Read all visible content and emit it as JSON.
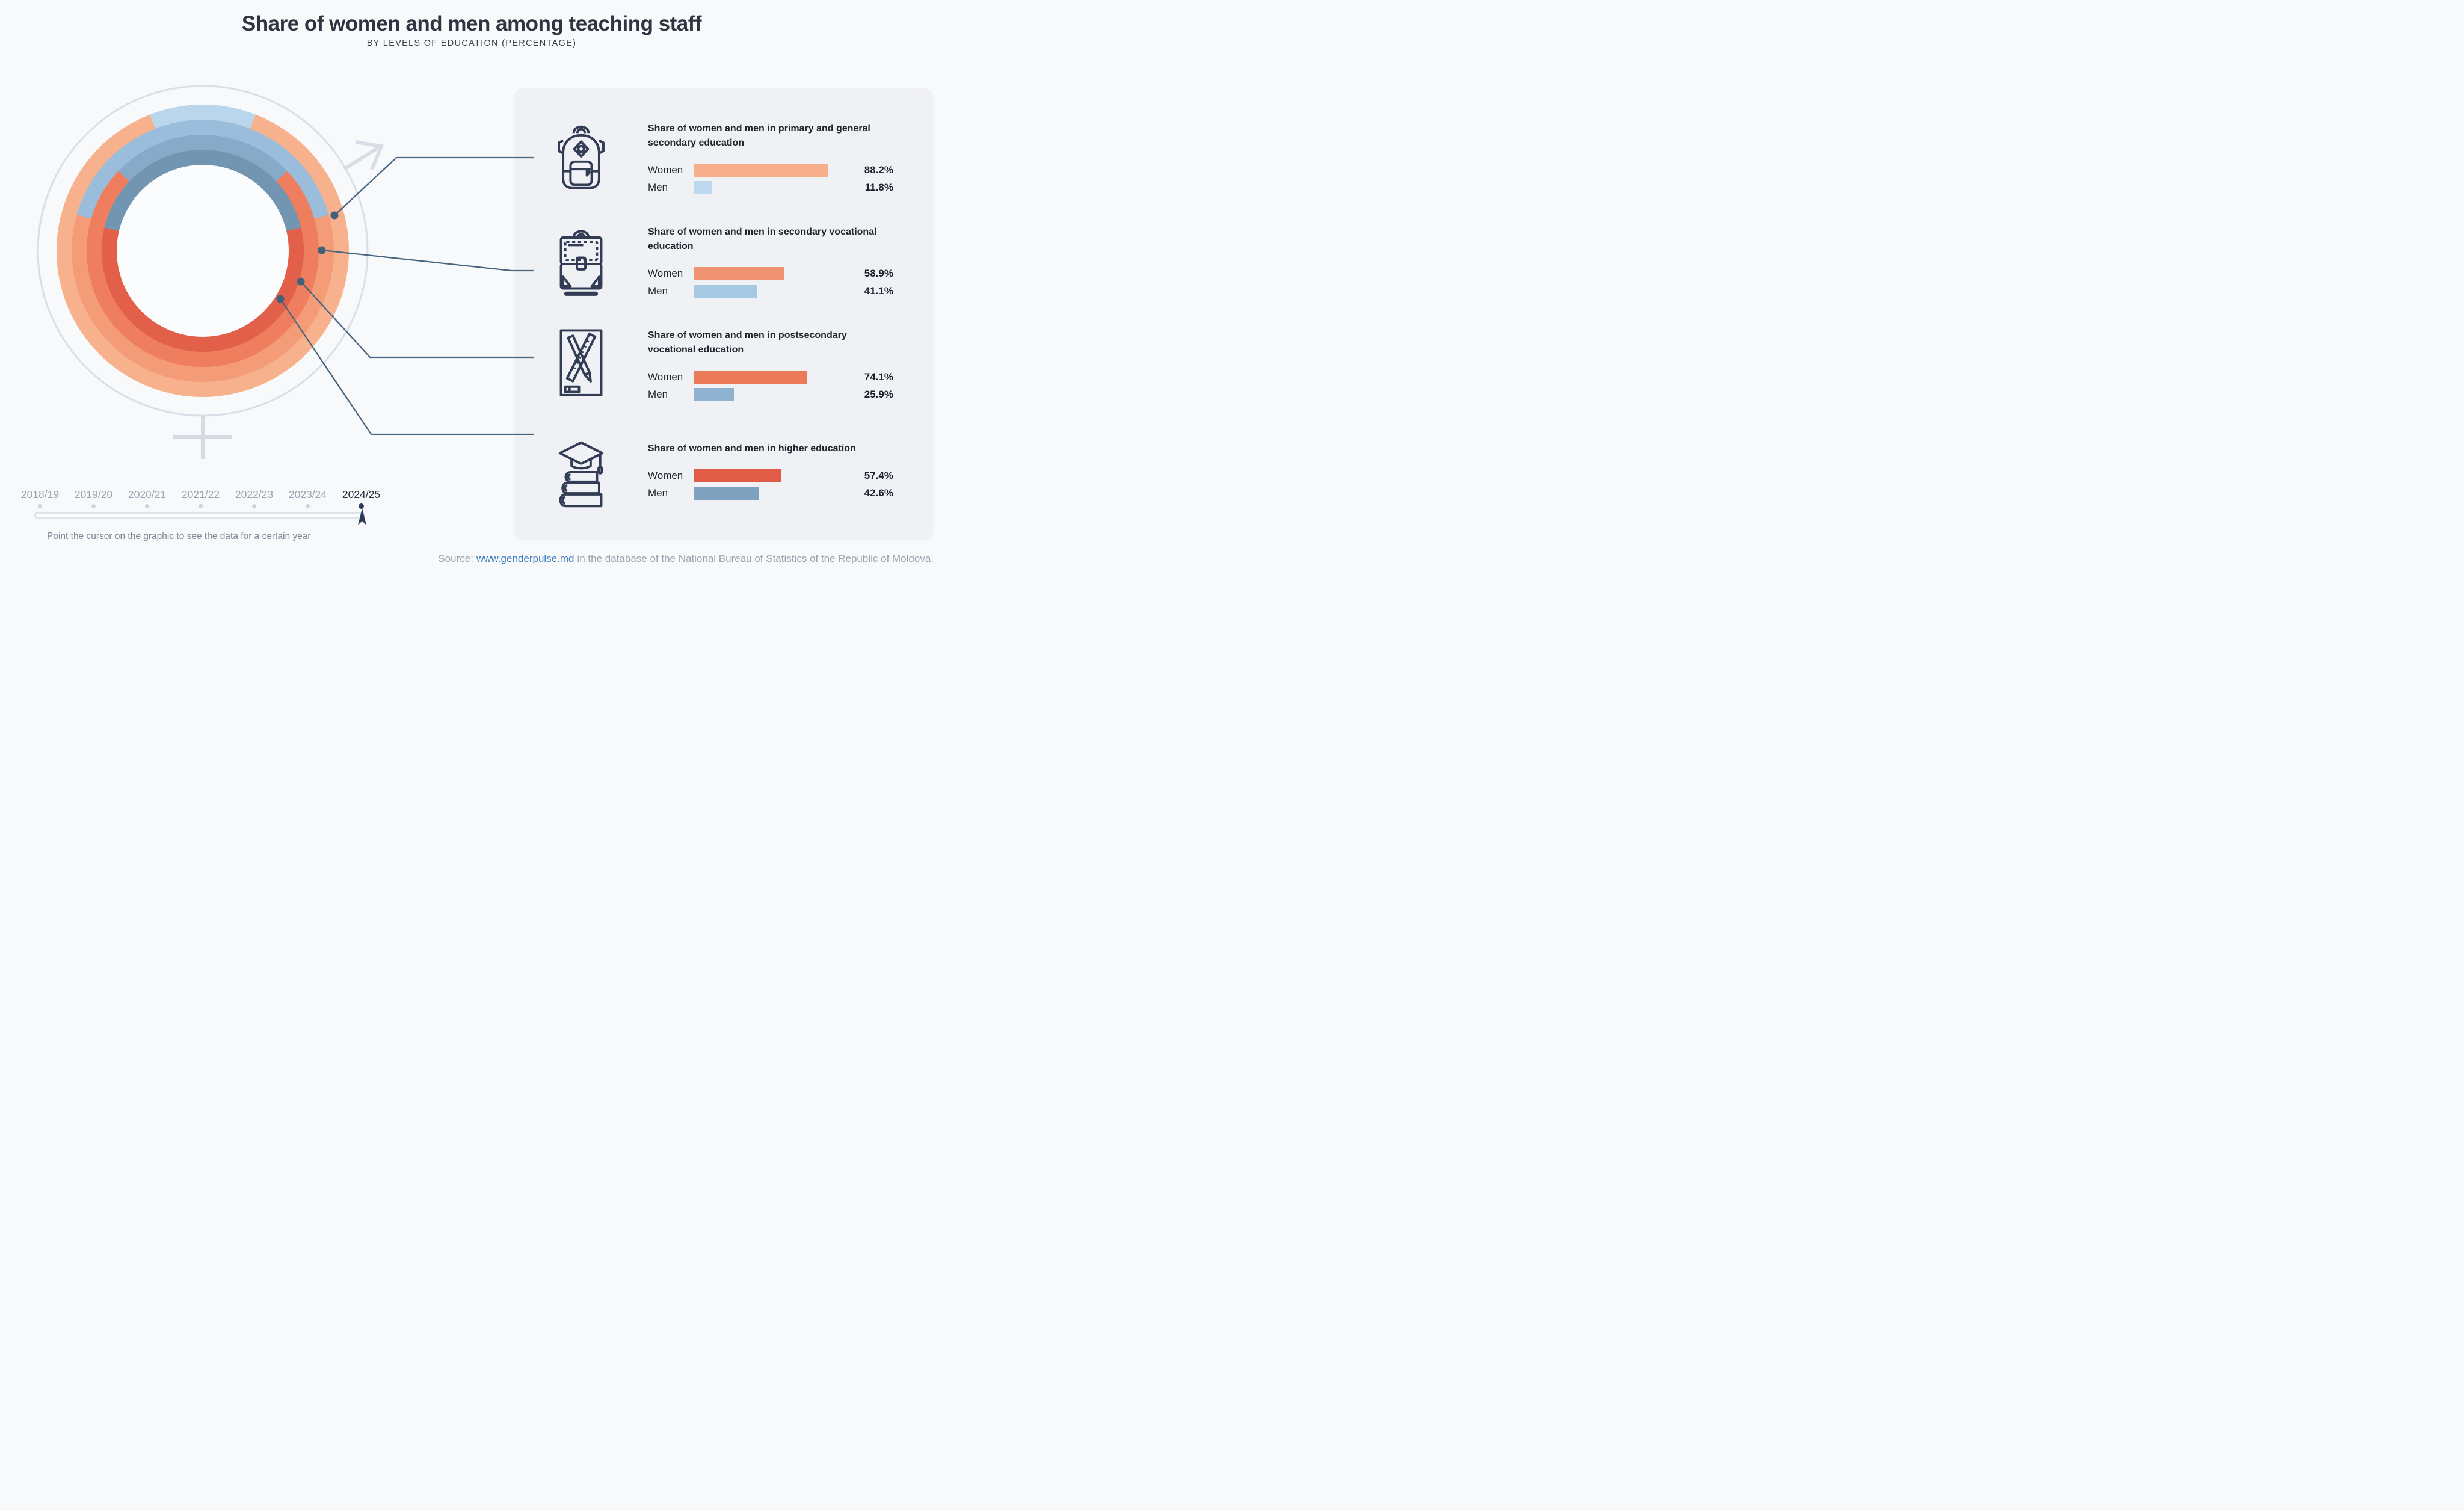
{
  "header": {
    "title": "Share of women and men among teaching staff",
    "subtitle": "BY LEVELS OF EDUCATION (PERCENTAGE)"
  },
  "donut": {
    "hole_color": "#FBFCFD",
    "outline_color": "#DADFE7",
    "rings": [
      {
        "key": "primary-general-secondary",
        "label": "Primary and general secondary education",
        "women_pct": 88.2,
        "men_pct": 11.8,
        "women_color": "#F7B28D",
        "men_color": "#BAD6ED"
      },
      {
        "key": "secondary-vocational",
        "label": "Secondary vocational education",
        "women_pct": 58.9,
        "men_pct": 41.1,
        "women_color": "#F49B78",
        "men_color": "#9ABDDB"
      },
      {
        "key": "postsecondary-vocational",
        "label": "Postsecondary vocational education",
        "women_pct": 74.1,
        "men_pct": 25.9,
        "women_color": "#EE7E5E",
        "men_color": "#87AAC9"
      },
      {
        "key": "higher",
        "label": "Higher education",
        "women_pct": 57.4,
        "men_pct": 42.6,
        "women_color": "#E25F49",
        "men_color": "#7295B2"
      }
    ]
  },
  "timeline": {
    "years": [
      {
        "label": "2018/19",
        "active": false
      },
      {
        "label": "2019/20",
        "active": false
      },
      {
        "label": "2020/21",
        "active": false
      },
      {
        "label": "2021/22",
        "active": false
      },
      {
        "label": "2022/23",
        "active": false
      },
      {
        "label": "2023/24",
        "active": false
      },
      {
        "label": "2024/25",
        "active": true
      }
    ],
    "hint": "Point the cursor on the graphic to see the data for a certain year"
  },
  "panel": {
    "blocks": [
      {
        "icon": "backpack",
        "title": "Share of women and men in primary and general secondary education",
        "rows": [
          {
            "label": "Women",
            "pct": 88.2,
            "display": "88.2%",
            "color": "#F6AF8A"
          },
          {
            "label": "Men",
            "pct": 11.8,
            "display": "11.8%",
            "color": "#BDD9F0"
          }
        ]
      },
      {
        "icon": "briefcase",
        "title": "Share of women and men in secondary vocational education",
        "rows": [
          {
            "label": "Women",
            "pct": 58.9,
            "display": "58.9%",
            "color": "#F19372"
          },
          {
            "label": "Men",
            "pct": 41.1,
            "display": "41.1%",
            "color": "#A5C8E3"
          }
        ]
      },
      {
        "icon": "pencil-ruler",
        "title": "Share of women and men in postsecondary vocational education",
        "rows": [
          {
            "label": "Women",
            "pct": 74.1,
            "display": "74.1%",
            "color": "#EA7A58"
          },
          {
            "label": "Men",
            "pct": 25.9,
            "display": "25.9%",
            "color": "#8FB2D1"
          }
        ]
      },
      {
        "icon": "graduation-books",
        "title": "Share of women and men in higher education",
        "rows": [
          {
            "label": "Women",
            "pct": 57.4,
            "display": "57.4%",
            "color": "#E05C46"
          },
          {
            "label": "Men",
            "pct": 42.6,
            "display": "42.6%",
            "color": "#7FA2BF"
          }
        ]
      }
    ]
  },
  "source": {
    "prefix": "Source:",
    "link": "www.genderpulse.md",
    "suffix": "in the database of the National Bureau of Statistics of the Republic of Moldova."
  },
  "colors": {
    "icon_navy": "#333C55",
    "connector": "#486580",
    "link_blue": "#4180BE",
    "active_year": "#2C3A55",
    "inactive_year": "#9AA3B1",
    "panel_bg": "#EFF1F4",
    "page_bg": "#F8F9FA"
  },
  "chart_data": {
    "type": "bar",
    "title": "Share of women and men among teaching staff",
    "subtitle": "By levels of education (percentage)",
    "year_shown": "2024/25",
    "years_available": [
      "2018/19",
      "2019/20",
      "2020/21",
      "2021/22",
      "2022/23",
      "2023/24",
      "2024/25"
    ],
    "categories": [
      "Primary and general secondary education",
      "Secondary vocational education",
      "Postsecondary vocational education",
      "Higher education"
    ],
    "series": [
      {
        "name": "Women",
        "values": [
          88.2,
          58.9,
          74.1,
          57.4
        ]
      },
      {
        "name": "Men",
        "values": [
          11.8,
          41.1,
          25.9,
          42.6
        ]
      }
    ],
    "unit": "%",
    "value_range": [
      0,
      100
    ],
    "companion_donut": "Four concentric rings repeat the same shares (outermost = primary/general secondary, innermost = higher education); the men share is the blue arc centered at 12 o'clock, the women share the orange remainder"
  }
}
